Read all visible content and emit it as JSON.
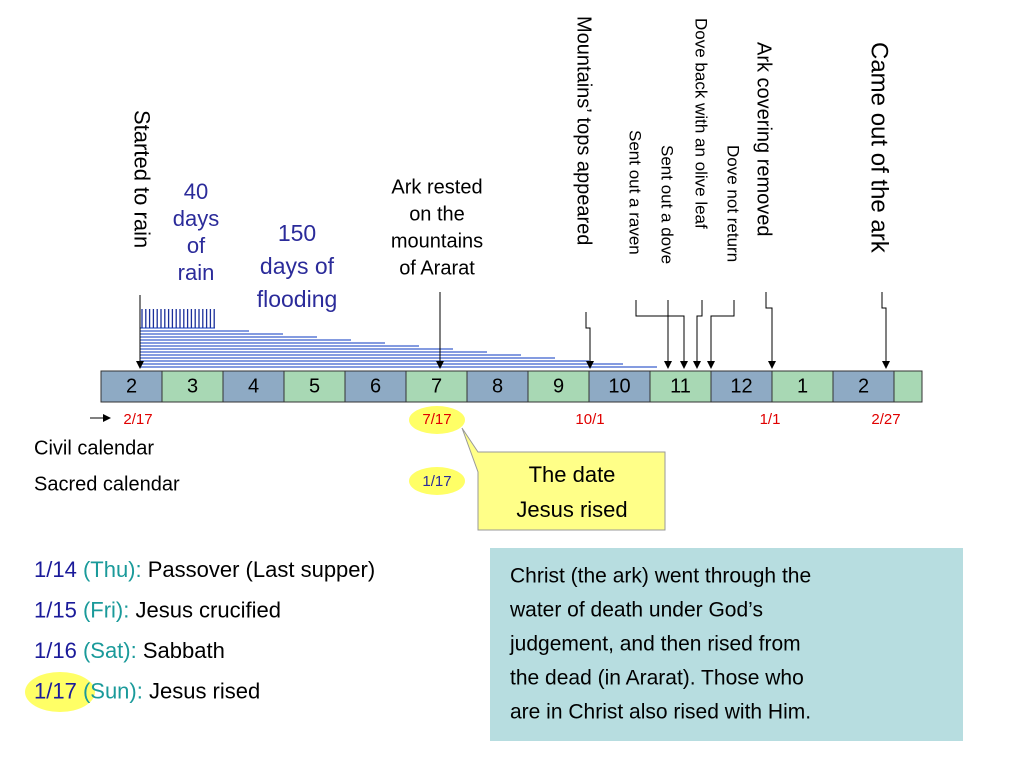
{
  "timeline": {
    "months": [
      "2",
      "3",
      "4",
      "5",
      "6",
      "7",
      "8",
      "9",
      "10",
      "11",
      "12",
      "1",
      "2"
    ],
    "events": [
      {
        "label": "Started to rain"
      },
      {
        "label": "Mountains’ tops appeared"
      },
      {
        "label": "Sent out a raven"
      },
      {
        "label": "Sent out a dove"
      },
      {
        "label": "Dove back with an olive leaf"
      },
      {
        "label": "Dove not return"
      },
      {
        "label": "Ark covering removed"
      },
      {
        "label": "Came out of the ark"
      }
    ],
    "rain": [
      "40",
      "days",
      "of",
      "rain"
    ],
    "flooding": [
      "150",
      "days of",
      "flooding"
    ],
    "rested": [
      "Ark rested",
      "on the",
      "mountains",
      "of Ararat"
    ],
    "dates": [
      "2/17",
      "7/17",
      "10/1",
      "1/1",
      "2/27"
    ],
    "civil": "Civil calendar",
    "sacred": "Sacred calendar",
    "sacred_date": "1/17",
    "callout": [
      "The date",
      "Jesus rised"
    ]
  },
  "list": [
    {
      "date": "1/14",
      "day": "(Thu):",
      "text": "Passover (Last supper)"
    },
    {
      "date": "1/15",
      "day": "(Fri):",
      "text": "Jesus crucified"
    },
    {
      "date": "1/16",
      "day": "(Sat):",
      "text": "Sabbath"
    },
    {
      "date": "1/17",
      "day": "(Sun):",
      "text": "Jesus rised"
    }
  ],
  "note": [
    "Christ (the ark) went through the",
    "water of death under God’s",
    "judgement, and then rised from",
    "the dead (in Ararat). Those who",
    "are in Christ also rised with Him."
  ]
}
